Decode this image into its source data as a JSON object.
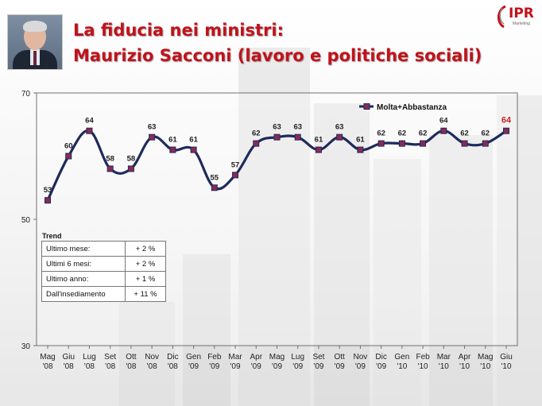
{
  "header": {
    "title_line1": "La fiducia nei ministri:",
    "title_line2": "Maurizio Sacconi (lavoro e politiche sociali)",
    "logo_text": "IPR",
    "logo_sub": "Marketing"
  },
  "colors": {
    "title": "#c1121b",
    "series_line": "#1f2a5c",
    "marker_fill": "#8a2a52",
    "highlight_label": "#cc2222",
    "plot_border": "#707070"
  },
  "trend": {
    "title": "Trend",
    "rows": [
      {
        "label": "Ultimo mese:",
        "value": "+ 2 %"
      },
      {
        "label": "Ultimi 6 mesi:",
        "value": "+ 2 %"
      },
      {
        "label": "Ultimo anno:",
        "value": "+ 1 %"
      },
      {
        "label": "Dall'insediamento",
        "value": "+ 11 %"
      }
    ]
  },
  "chart_data": {
    "type": "line",
    "title": "",
    "xlabel": "",
    "ylabel": "",
    "ylim": [
      30,
      70
    ],
    "yticks": [
      30,
      50,
      70
    ],
    "grid": false,
    "legend_position": "top-right",
    "categories": [
      [
        "Mag",
        "'08"
      ],
      [
        "Giu",
        "'08"
      ],
      [
        "Lug",
        "'08"
      ],
      [
        "Set",
        "'08"
      ],
      [
        "Ott",
        "'08"
      ],
      [
        "Nov",
        "'08"
      ],
      [
        "Dic",
        "'08"
      ],
      [
        "Gen",
        "'09"
      ],
      [
        "Feb",
        "'09"
      ],
      [
        "Mar",
        "'09"
      ],
      [
        "Apr",
        "'09"
      ],
      [
        "Mag",
        "'09"
      ],
      [
        "Lug",
        "'09"
      ],
      [
        "Set",
        "'09"
      ],
      [
        "Ott",
        "'09"
      ],
      [
        "Nov",
        "'09"
      ],
      [
        "Dic",
        "'09"
      ],
      [
        "Gen",
        "'10"
      ],
      [
        "Feb",
        "'10"
      ],
      [
        "Mar",
        "'10"
      ],
      [
        "Apr",
        "'10"
      ],
      [
        "Mag",
        "'10"
      ],
      [
        "Giu",
        "'10"
      ]
    ],
    "series": [
      {
        "name": "Molta+Abbastanza",
        "values": [
          53,
          60,
          64,
          58,
          58,
          63,
          61,
          61,
          55,
          57,
          62,
          63,
          63,
          61,
          63,
          61,
          62,
          62,
          62,
          64,
          62,
          62,
          64
        ]
      }
    ],
    "highlight_last": true
  }
}
